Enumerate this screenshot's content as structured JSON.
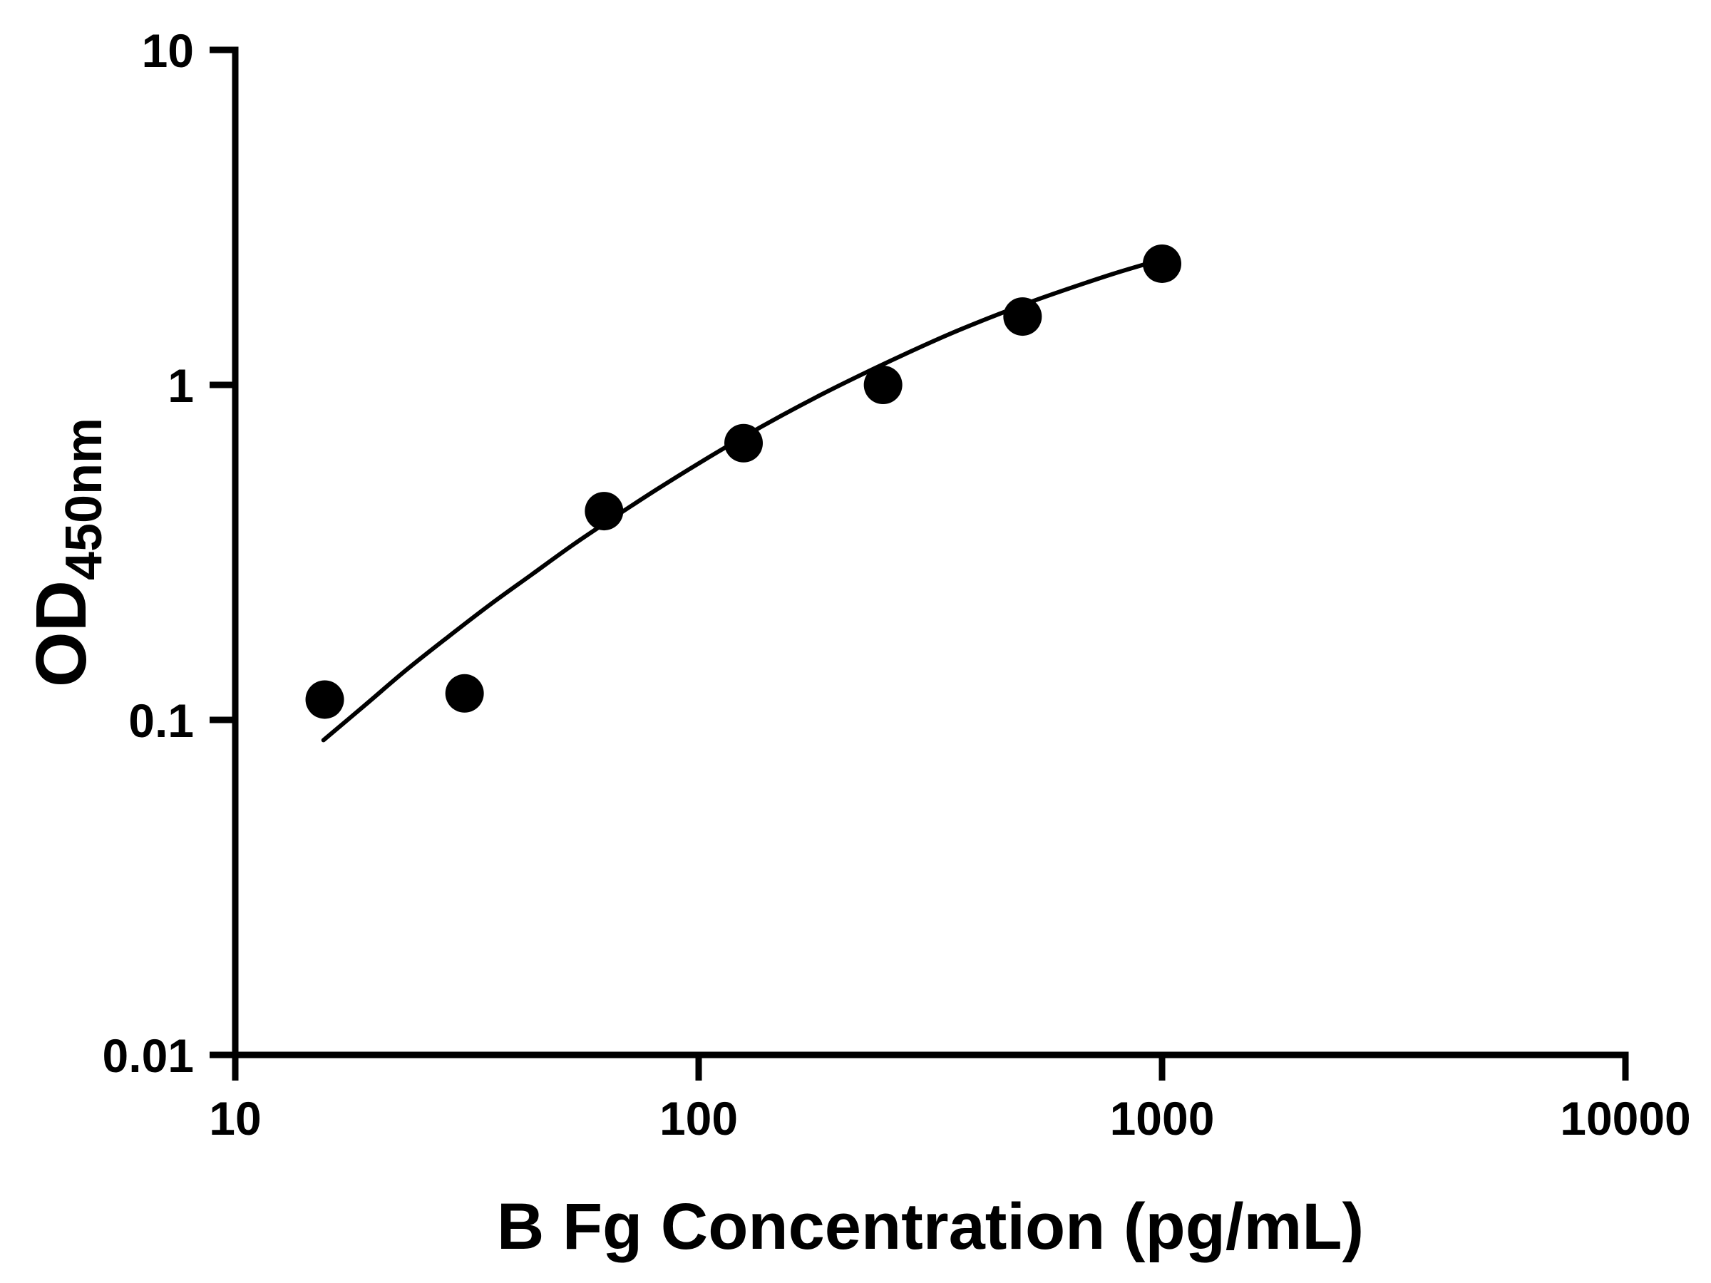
{
  "chart_data": {
    "type": "scatter",
    "title": "",
    "xlabel": "B Fg Concentration (pg/mL)",
    "ylabel": "OD450nm",
    "ylabel_main": "OD",
    "ylabel_sub": "450nm",
    "x_scale": "log",
    "y_scale": "log",
    "xlim": [
      10,
      10000
    ],
    "ylim": [
      0.01,
      10
    ],
    "grid": false,
    "legend": "none",
    "x_tick_values": [
      10,
      100,
      1000,
      10000
    ],
    "x_tick_labels": [
      "10",
      "100",
      "1000",
      "10000"
    ],
    "y_tick_values": [
      0.01,
      0.1,
      1,
      10
    ],
    "y_tick_labels": [
      "0.01",
      "0.1",
      "1",
      "10"
    ],
    "series": [
      {
        "name": "standard-points",
        "type": "scatter",
        "marker": "circle",
        "color": "#000000",
        "x": [
          15.6,
          31.25,
          62.5,
          125,
          250,
          500,
          1000
        ],
        "y": [
          0.115,
          0.12,
          0.42,
          0.67,
          1.0,
          1.6,
          2.3
        ]
      },
      {
        "name": "fit-curve",
        "type": "line",
        "color": "#000000",
        "x": [
          15.5,
          19.1,
          23.4,
          28.8,
          35.5,
          43.7,
          53.7,
          66.1,
          81.3,
          100,
          123,
          151,
          186,
          229,
          282,
          347,
          427,
          525,
          646,
          794,
          1000
        ],
        "y": [
          0.087,
          0.111,
          0.141,
          0.177,
          0.221,
          0.272,
          0.334,
          0.405,
          0.488,
          0.583,
          0.691,
          0.81,
          0.943,
          1.087,
          1.245,
          1.416,
          1.592,
          1.776,
          1.963,
          2.157,
          2.371
        ]
      }
    ]
  },
  "style": {
    "axis_color": "#000000",
    "marker_color": "#000000",
    "line_color": "#000000",
    "background": "#ffffff"
  }
}
